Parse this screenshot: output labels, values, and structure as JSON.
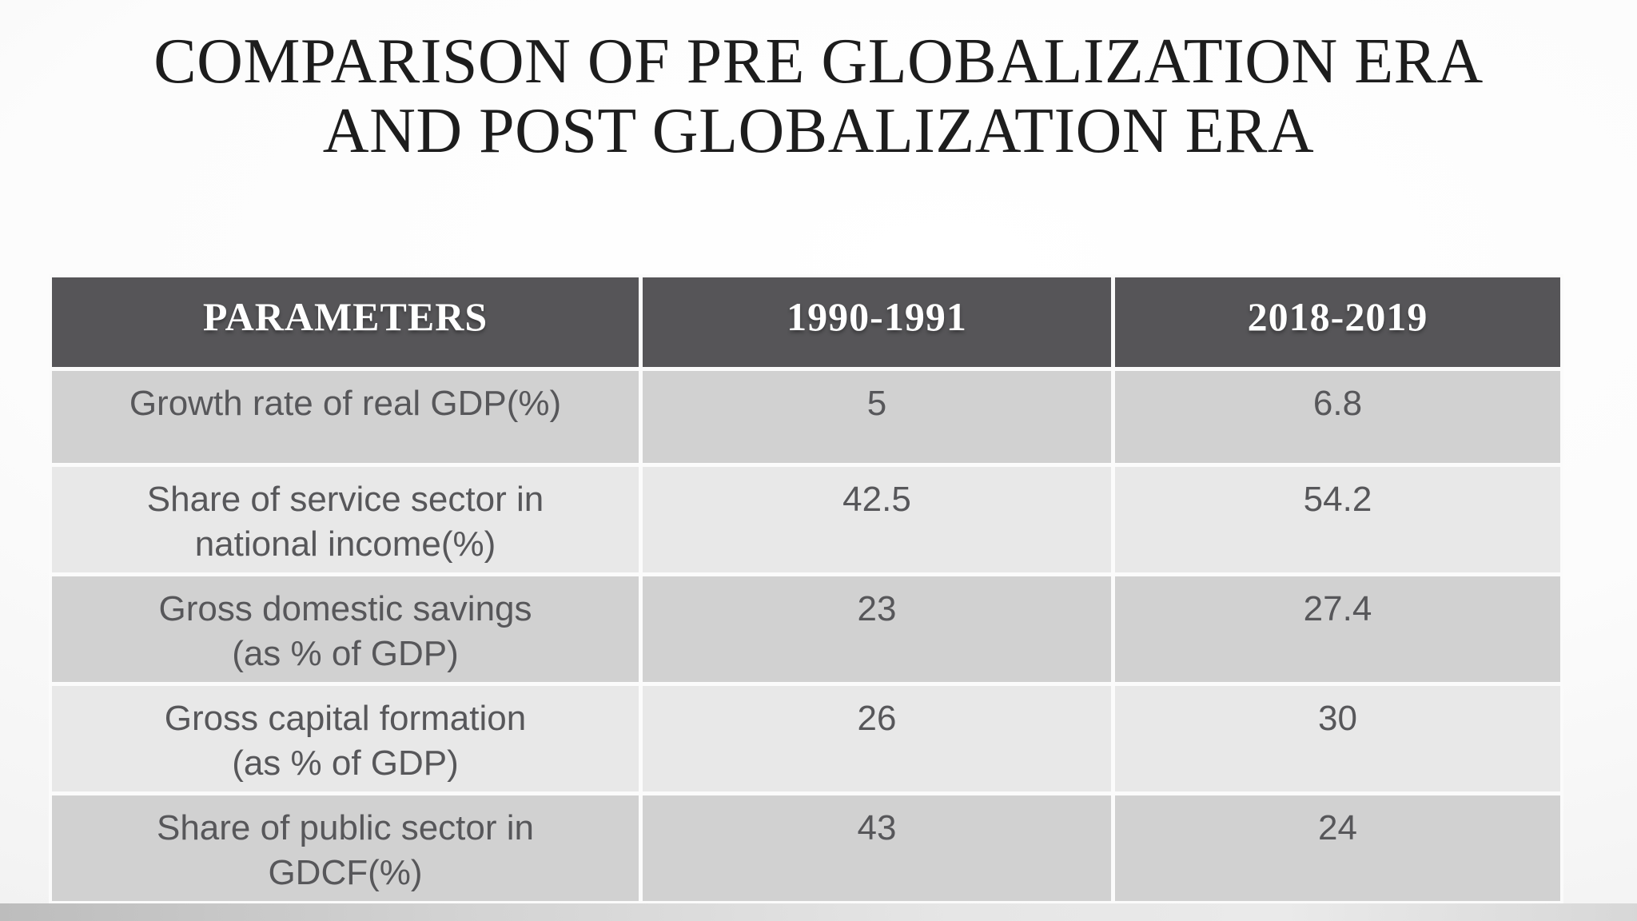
{
  "slide": {
    "title": {
      "line1": "COMPARISON OF PRE GLOBALIZATION ERA",
      "line2": "AND POST GLOBALIZATION ERA"
    }
  },
  "table": {
    "columns": [
      "PARAMETERS",
      "1990-1991",
      "2018-2019"
    ],
    "rows": [
      {
        "parameter": "Growth rate of real GDP(%)",
        "v1990": "5",
        "v2018": "6.8"
      },
      {
        "parameter": "Share of service sector in\nnational income(%)",
        "v1990": "42.5",
        "v2018": "54.2"
      },
      {
        "parameter": "Gross domestic savings\n(as % of GDP)",
        "v1990": "23",
        "v2018": "27.4"
      },
      {
        "parameter": "Gross capital formation\n(as % of GDP)",
        "v1990": "26",
        "v2018": "30"
      },
      {
        "parameter": "Share of public sector in\nGDCF(%)",
        "v1990": "43",
        "v2018": "24"
      }
    ]
  },
  "colors": {
    "header_bg": "#565558",
    "header_text": "#ffffff",
    "row_odd_bg": "#d1d1d1",
    "row_even_bg": "#e8e8e8",
    "body_text": "#57575a",
    "title_text": "#1d1d1d",
    "separator": "#fbfbfb"
  },
  "chart_data": {
    "type": "table",
    "title": "COMPARISON OF PRE GLOBALIZATION ERA AND POST GLOBALIZATION ERA",
    "columns": [
      "PARAMETERS",
      "1990-1991",
      "2018-2019"
    ],
    "rows": [
      [
        "Growth rate of real GDP(%)",
        5,
        6.8
      ],
      [
        "Share of service sector in national income(%)",
        42.5,
        54.2
      ],
      [
        "Gross domestic savings (as % of GDP)",
        23,
        27.4
      ],
      [
        "Gross capital formation (as % of GDP)",
        26,
        30
      ],
      [
        "Share of public sector in GDCF(%)",
        43,
        24
      ]
    ]
  }
}
